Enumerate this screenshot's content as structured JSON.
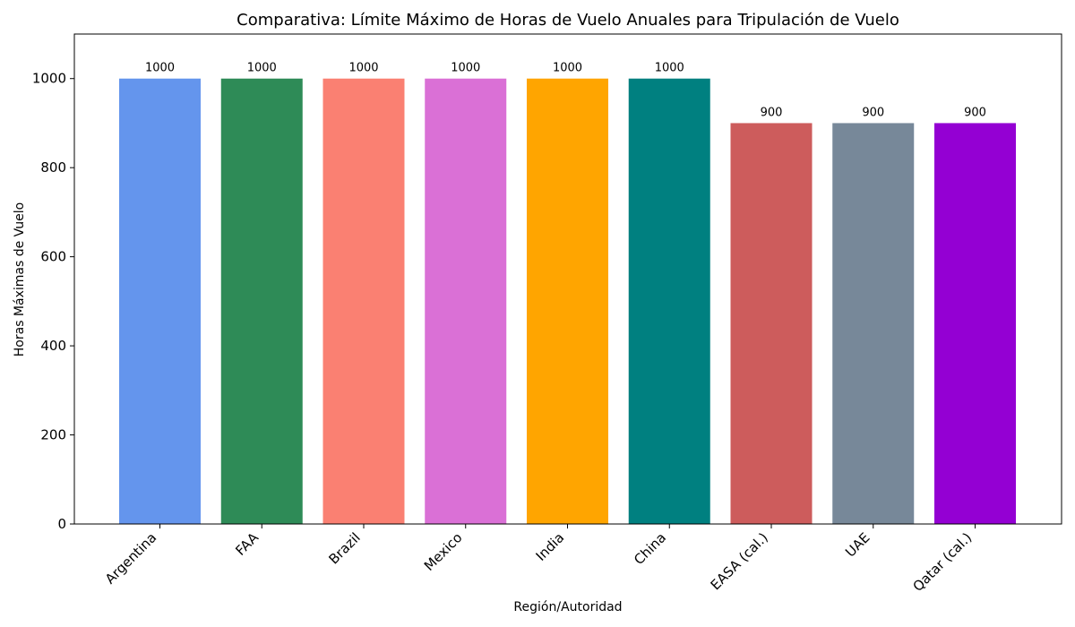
{
  "chart_data": {
    "type": "bar",
    "title": "Comparativa: Límite Máximo de Horas de Vuelo Anuales para Tripulación de Vuelo",
    "xlabel": "Región/Autoridad",
    "ylabel": "Horas Máximas de Vuelo",
    "categories": [
      "Argentina",
      "FAA",
      "Brazil",
      "Mexico",
      "India",
      "China",
      "EASA (cal.)",
      "UAE",
      "Qatar (cal.)"
    ],
    "values": [
      1000,
      1000,
      1000,
      1000,
      1000,
      1000,
      900,
      900,
      900
    ],
    "data_labels": [
      "1000",
      "1000",
      "1000",
      "1000",
      "1000",
      "1000",
      "900",
      "900",
      "900"
    ],
    "colors": [
      "#6495ED",
      "#2E8B57",
      "#FA8072",
      "#DA70D6",
      "#FFA500",
      "#008080",
      "#CD5C5C",
      "#778899",
      "#9400D3"
    ],
    "ylim": [
      0,
      1100
    ],
    "yticks": [
      0,
      200,
      400,
      600,
      800,
      1000
    ],
    "ytick_labels": [
      "0",
      "200",
      "400",
      "600",
      "800",
      "1000"
    ],
    "grid": false,
    "legend": "none"
  }
}
